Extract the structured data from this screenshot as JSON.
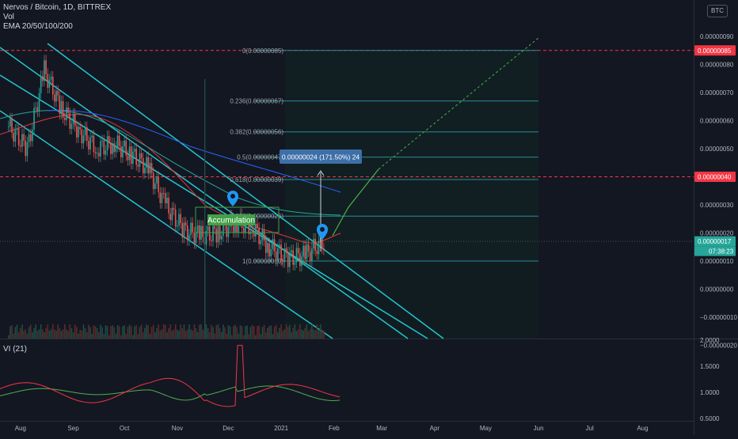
{
  "header": {
    "symbol_line": "Nervos / Bitcoin, 1D, BITTREX",
    "vol_label": "Vol",
    "ema_label": "EMA 20/50/100/200",
    "currency_badge": "BTC"
  },
  "price_axis": {
    "ticks": [
      "0.00000090",
      "0.00000080",
      "0.00000070",
      "0.00000060",
      "0.00000050",
      "0.00000040",
      "0.00000030",
      "0.00000020",
      "0.00000010",
      "0.00000000",
      "−0.00000010",
      "−0.00000020"
    ],
    "tick_values": [
      9e-07,
      8e-07,
      7e-07,
      6e-07,
      5e-07,
      4e-07,
      3e-07,
      2e-07,
      1e-07,
      0.0,
      -1e-07,
      -2e-07
    ],
    "badge_top": "0.00000085",
    "badge_mid": "0.00000040",
    "badge_last": "0.00000017",
    "badge_countdown": "07:38:23"
  },
  "time_axis": {
    "labels": [
      "Aug",
      "Sep",
      "Oct",
      "Nov",
      "Dec",
      "2021",
      "Feb",
      "Mar",
      "Apr",
      "May",
      "Jun",
      "Jul",
      "Aug"
    ]
  },
  "fib_levels": [
    {
      "label": "0(0.00000085)",
      "value": 8.5e-07
    },
    {
      "label": "0.236(0.00000067)",
      "value": 6.7e-07
    },
    {
      "label": "0.382(0.00000056)",
      "value": 5.6e-07
    },
    {
      "label": "0.5(0.00000047)",
      "value": 4.7e-07
    },
    {
      "label": "0.618(0.00000039)",
      "value": 3.9e-07
    },
    {
      "label": "0.786(0.00000026)",
      "value": 2.6e-07
    },
    {
      "label": "1(0.00000010)",
      "value": 1e-07
    }
  ],
  "annotations": {
    "measure_label": "0.00000024 (171.50%) 24",
    "accumulation_label": "Accumulation"
  },
  "vi_panel": {
    "label": "VI (21)",
    "ticks": [
      "2.0000",
      "1.5000",
      "1.0000",
      "0.5000"
    ],
    "tick_values": [
      2.0,
      1.5,
      1.0,
      0.5
    ]
  },
  "colors": {
    "background": "#131722",
    "up": "#26a69a",
    "down": "#ef5350",
    "channel": "#22c6cf",
    "fib": "#2a8c96",
    "vi_plus": "#4caf50",
    "vi_minus": "#f23645",
    "ema20": "#e53935",
    "ema50": "#2962ff",
    "ema100": "#26a69a",
    "ema200": "#7b1fa2"
  },
  "chart_data": {
    "type": "candlestick",
    "title": "Nervos / Bitcoin, 1D, BITTREX",
    "x_range": [
      "2020-07-20",
      "2021-08-31"
    ],
    "y_range": [
      -2e-07,
      9.3e-07
    ],
    "series": [
      {
        "name": "Nervos / Bitcoin",
        "points": [
          {
            "date": "2020-07-25",
            "close": 5.8e-07
          },
          {
            "date": "2020-08-05",
            "close": 5e-07
          },
          {
            "date": "2020-08-15",
            "close": 7.8e-07
          },
          {
            "date": "2020-08-25",
            "close": 6.4e-07
          },
          {
            "date": "2020-09-05",
            "close": 5.6e-07
          },
          {
            "date": "2020-09-15",
            "close": 5e-07
          },
          {
            "date": "2020-09-25",
            "close": 5.2e-07
          },
          {
            "date": "2020-10-05",
            "close": 4.8e-07
          },
          {
            "date": "2020-10-15",
            "close": 4.3e-07
          },
          {
            "date": "2020-10-25",
            "close": 3e-07
          },
          {
            "date": "2020-11-05",
            "close": 2.1e-07
          },
          {
            "date": "2020-11-15",
            "close": 1.9e-07
          },
          {
            "date": "2020-11-25",
            "close": 2e-07
          },
          {
            "date": "2020-12-05",
            "close": 2.4e-07
          },
          {
            "date": "2020-12-15",
            "close": 2.2e-07
          },
          {
            "date": "2020-12-25",
            "close": 1.5e-07
          },
          {
            "date": "2021-01-05",
            "close": 1.1e-07
          },
          {
            "date": "2021-01-15",
            "close": 1.2e-07
          },
          {
            "date": "2021-01-23",
            "close": 1.6e-07
          },
          {
            "date": "2021-01-27",
            "close": 1.7e-07
          }
        ]
      }
    ]
  }
}
